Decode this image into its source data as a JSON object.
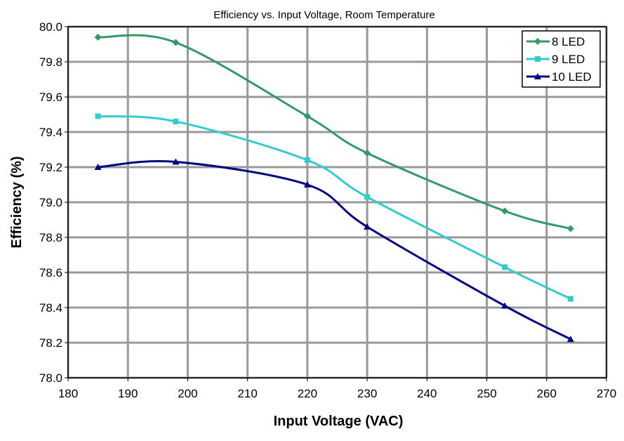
{
  "chart_data": {
    "type": "line",
    "title": "Efficiency vs. Input Voltage, Room Temperature",
    "xlabel": "Input Voltage (VAC)",
    "ylabel": "Efficiency (%)",
    "xlim": [
      180,
      270
    ],
    "ylim": [
      78.0,
      80.0
    ],
    "xticks": [
      180,
      190,
      200,
      210,
      220,
      230,
      240,
      250,
      260,
      270
    ],
    "yticks": [
      "78.0",
      "78.2",
      "78.4",
      "78.6",
      "78.8",
      "79.0",
      "79.2",
      "79.4",
      "79.6",
      "79.8",
      "80.0"
    ],
    "grid": true,
    "legend_position": "top-right",
    "x": [
      185,
      198,
      220,
      230,
      253,
      264
    ],
    "series": [
      {
        "name": "8 LED",
        "color": "#339966",
        "marker": "diamond",
        "values": [
          79.94,
          79.91,
          79.49,
          79.28,
          78.95,
          78.85
        ]
      },
      {
        "name": "9 LED",
        "color": "#33CCCC",
        "marker": "square",
        "values": [
          79.49,
          79.46,
          79.24,
          79.03,
          78.63,
          78.45
        ]
      },
      {
        "name": "10 LED",
        "color": "#000080",
        "marker": "triangle",
        "values": [
          79.2,
          79.23,
          79.1,
          78.86,
          78.41,
          78.22
        ]
      }
    ]
  }
}
